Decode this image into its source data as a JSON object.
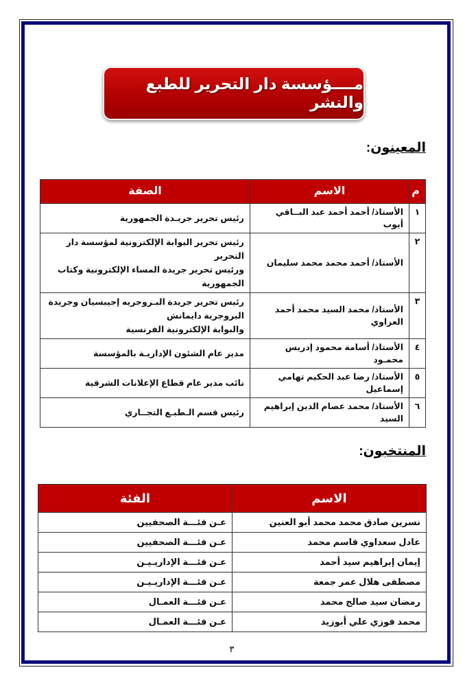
{
  "title": "مــــؤسسة دار التحرير للطبع والنشر",
  "appointed": {
    "heading": "المعينون",
    "headers": {
      "num": "م",
      "name": "الاسم",
      "position": "الصفة"
    },
    "rows": [
      {
        "num": "١",
        "name": "الأستاذ/ أحمد أحمد عبد البــاقي أيوب",
        "position": [
          "رئيس تحرير جريـدة الجمهورية"
        ]
      },
      {
        "num": "٢",
        "name": "الأستاذ/ أحمد محمد محمد سليمان",
        "position": [
          "رئيس تحرير البوابة الإلكترونية لمؤسسة دار التحرير",
          "ورئيس تحرير جريدة المساء الإلكترونية وكتاب الجمهورية"
        ]
      },
      {
        "num": "٣",
        "name": "الأستاذ/ محمد السيد محمد أحمد العزاوي",
        "position": [
          "رئيس تحرير جريدة البـروجريه إجيبسيان وجريدة",
          "البروجرية دايمانش",
          "والبوابة الإلكترونية الفرنسية"
        ]
      },
      {
        "num": "٤",
        "name": "الأستاذ/ أسامة محمود إدريس محمـود",
        "position": [
          "مدير عام الشئون الإداريـة بالمؤسسة"
        ]
      },
      {
        "num": "٥",
        "name": "الأستاذ/ رضا عبد الحكيم تهامي إسماعيل",
        "position": [
          "نائب مدير عام قطاع الإعلانات الشرقية"
        ]
      },
      {
        "num": "٦",
        "name": "الأستاذ/ محمد عصام الدين إبراهيم السيد",
        "position": [
          "رئيس قسم الـطبـع التجــاري"
        ]
      }
    ]
  },
  "elected": {
    "heading": "المنتخبون",
    "headers": {
      "name": "الاسم",
      "category": "الفئة"
    },
    "rows": [
      {
        "name": "نسرين صادق محمد محمد أبو العنين",
        "category": "عـن فئـــة الصحفيين"
      },
      {
        "name": "عادل سعداوي قاسم محمد",
        "category": "عـن فئـــة الصحفيين"
      },
      {
        "name": "إيمان إبراهيم سيد أحمد",
        "category": "عـن فئـــة الإداريـيـن"
      },
      {
        "name": "مصطفى هلال عمر جمعة",
        "category": "عـن فئـــة الإداريـيـن"
      },
      {
        "name": "رمضان سيد صالح محمد",
        "category": "عـن فئـــة العمـال"
      },
      {
        "name": "محمد فوزي علي أبوزيد",
        "category": "عـن فئـــة العمـال"
      }
    ]
  },
  "page_number": "٣",
  "colors": {
    "accent": "#c00000",
    "border": "#0a0a7a"
  }
}
